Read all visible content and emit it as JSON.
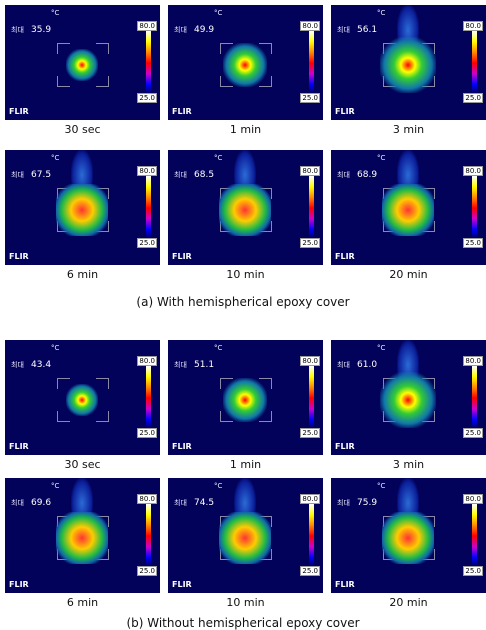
{
  "unit": "°C",
  "max_label": "최대",
  "scale_max": "80.0",
  "scale_min": "25.0",
  "brand": "FLIR",
  "panels": [
    {
      "caption": "(a) With hemispherical epoxy cover",
      "images": [
        {
          "max": "35.9",
          "time": "30 sec"
        },
        {
          "max": "49.9",
          "time": "1 min"
        },
        {
          "max": "56.1",
          "time": "3 min"
        },
        {
          "max": "67.5",
          "time": "6 min"
        },
        {
          "max": "68.5",
          "time": "10 min"
        },
        {
          "max": "68.9",
          "time": "20 min"
        }
      ]
    },
    {
      "caption": "(b) Without hemispherical epoxy cover",
      "images": [
        {
          "max": "43.4",
          "time": "30 sec"
        },
        {
          "max": "51.1",
          "time": "1 min"
        },
        {
          "max": "61.0",
          "time": "3 min"
        },
        {
          "max": "69.6",
          "time": "6 min"
        },
        {
          "max": "74.5",
          "time": "10 min"
        },
        {
          "max": "75.9",
          "time": "20 min"
        }
      ]
    }
  ]
}
